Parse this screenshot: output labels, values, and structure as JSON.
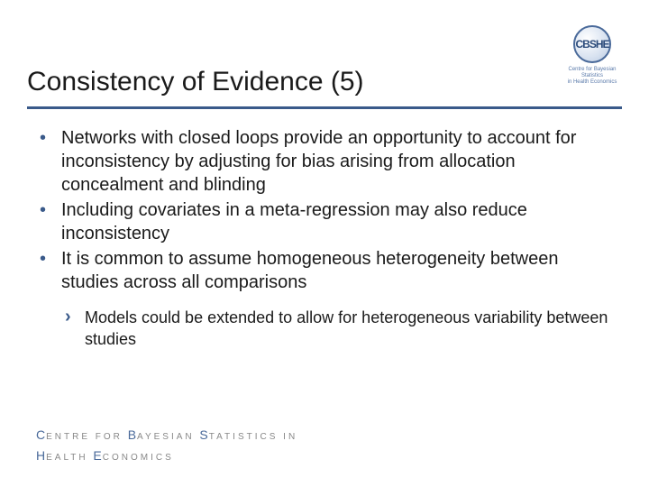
{
  "logo": {
    "badge_text": "CBSHE",
    "caption_line1": "Centre for Bayesian Statistics",
    "caption_line2": "in Health Economics"
  },
  "title": "Consistency of Evidence (5)",
  "bullets": [
    "Networks with closed loops provide an opportunity to account for inconsistency by adjusting for bias arising from allocation concealment and blinding",
    "Including covariates in a meta-regression may also reduce inconsistency",
    "It is common to assume homogeneous heterogeneity between studies across all comparisons"
  ],
  "sub_bullets": [
    "Models could be extended to allow for heterogeneous variability between studies"
  ],
  "footer": {
    "line1_parts": [
      "C",
      "ENTRE FOR ",
      "B",
      "AYESIAN ",
      "S",
      "TATISTICS IN"
    ],
    "line2_parts": [
      "H",
      "EALTH ",
      "E",
      "CONOMICS"
    ]
  },
  "colors": {
    "rule": "#3a5a8a",
    "bullet": "#3a5a8a",
    "text": "#1a1a1a",
    "logo_border": "#4a6a9a"
  }
}
